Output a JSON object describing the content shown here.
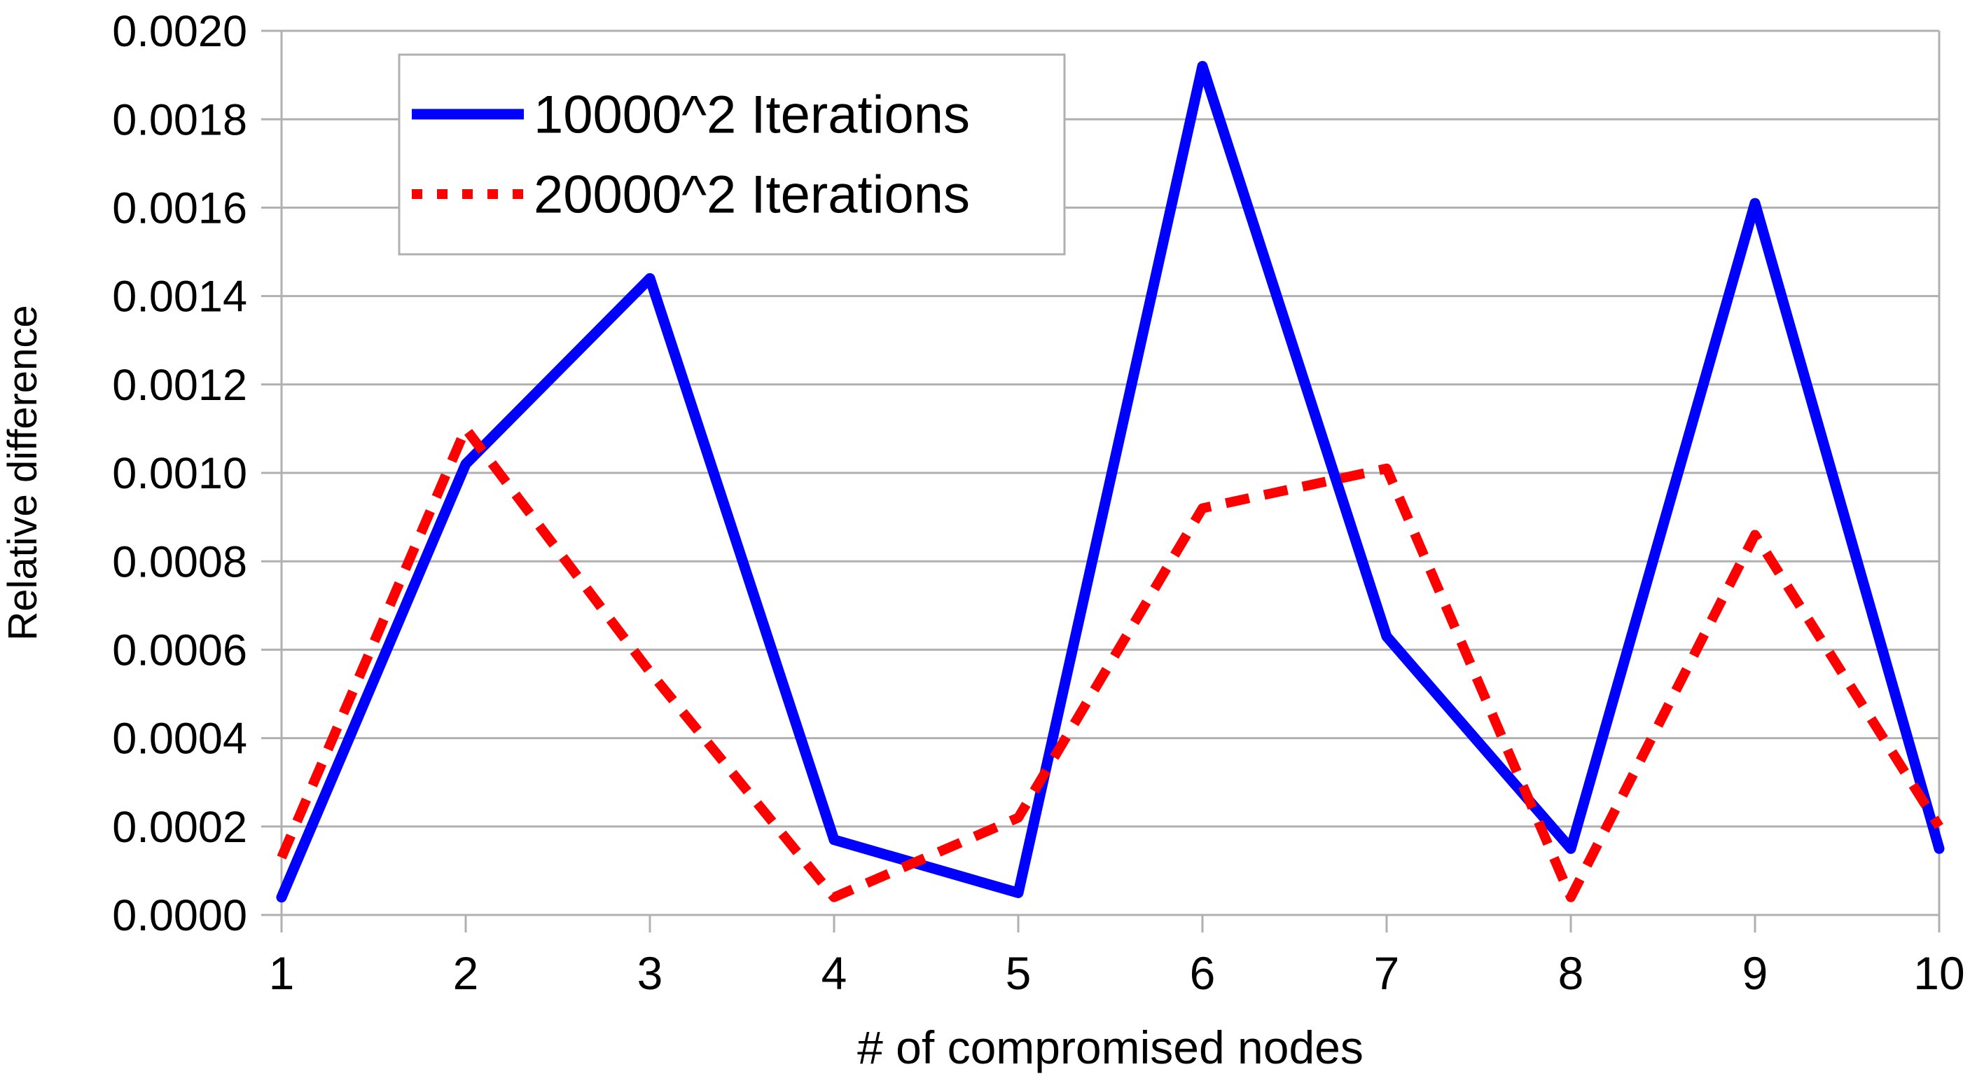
{
  "chart_data": {
    "type": "line",
    "title": "",
    "xlabel": "# of compromised nodes",
    "ylabel": "Relative difference",
    "x": [
      1,
      2,
      3,
      4,
      5,
      6,
      7,
      8,
      9,
      10
    ],
    "xtick_labels": [
      "1",
      "2",
      "3",
      "4",
      "5",
      "6",
      "7",
      "8",
      "9",
      "10"
    ],
    "ylim": [
      0,
      0.002
    ],
    "ytick_step": 0.0002,
    "ytick_labels": [
      "0.0000",
      "0.0002",
      "0.0004",
      "0.0006",
      "0.0008",
      "0.0010",
      "0.0012",
      "0.0014",
      "0.0016",
      "0.0018",
      "0.0020"
    ],
    "grid": "horizontal",
    "legend_position": "top-left",
    "series": [
      {
        "name": "10000^2 Iterations",
        "color": "#0000ff",
        "style": "solid",
        "values": [
          4e-05,
          0.00102,
          0.00144,
          0.00017,
          5e-05,
          0.00192,
          0.00063,
          0.00015,
          0.00161,
          0.00015
        ]
      },
      {
        "name": "20000^2 Iterations",
        "color": "#ff0000",
        "style": "dashed",
        "values": [
          0.00013,
          0.0011,
          0.00055,
          4e-05,
          0.00022,
          0.00092,
          0.00101,
          4e-05,
          0.00086,
          0.0002
        ]
      }
    ],
    "colors": {
      "grid": "#b0b0b0",
      "background": "#ffffff",
      "text": "#000000"
    }
  }
}
